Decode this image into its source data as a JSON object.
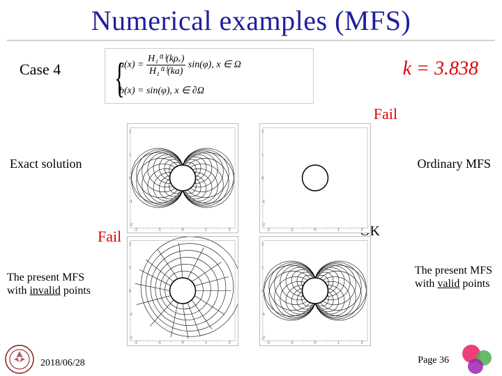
{
  "title": "Numerical examples (MFS)",
  "title_color": "#1e1e9e",
  "case_label": "Case 4",
  "k_value_text": "k = 3.838",
  "k_value_color": "#e00000",
  "equation": {
    "line1_lhs": "u(x) = ",
    "frac_num": "H₁⁽¹⁾(kρₓ)",
    "frac_den": "H₁⁽¹⁾(ka)",
    "line1_rhs": " sin(φ), x ∈ Ω",
    "line2": "b(x) = sin(φ), x ∈ ∂Ω"
  },
  "labels": {
    "fail": "Fail",
    "ok": "OK",
    "exact": "Exact solution",
    "ordinary": "Ordinary MFS",
    "invalid_l1": "The present MFS",
    "invalid_l2": "with ",
    "invalid_u": "invalid",
    "invalid_l3": " points",
    "valid_l1": "The present MFS",
    "valid_l2": "with ",
    "valid_u": "valid",
    "valid_l3": " points"
  },
  "fail_color": "#e00000",
  "plots": {
    "domain": [
      -2,
      2
    ],
    "ticks": [
      -2,
      -1.5,
      -1,
      -0.5,
      0,
      0.5,
      1,
      1.5,
      2
    ],
    "inner_radius": 0.55,
    "line_color": "#000000",
    "line_width": 0.6,
    "panels": [
      {
        "name": "exact",
        "type": "clean_field"
      },
      {
        "name": "ordinary",
        "type": "noisy"
      },
      {
        "name": "invalid",
        "type": "distorted"
      },
      {
        "name": "valid",
        "type": "clean_field"
      }
    ]
  },
  "footer": {
    "date": "2018/06/28",
    "page": "Page 36"
  },
  "logo_left_color": "#8b1a1a",
  "logo_right_colors": [
    "#e91e63",
    "#4caf50",
    "#9c27b0"
  ]
}
